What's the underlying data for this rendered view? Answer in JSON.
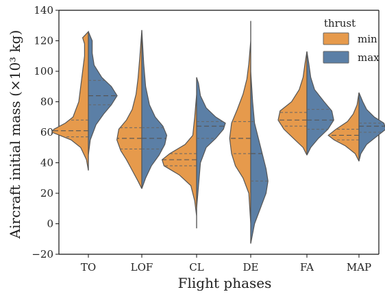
{
  "chart_data": {
    "type": "violin",
    "xlabel": "Flight phases",
    "ylabel": "Aircraft initial mass (×10³ kg)",
    "categories": [
      "TO",
      "LOF",
      "CL",
      "DE",
      "FA",
      "MAP"
    ],
    "ylim": [
      -20,
      140
    ],
    "yticks": [
      -20,
      0,
      20,
      40,
      60,
      80,
      100,
      120,
      140
    ],
    "legend": {
      "title": "thrust",
      "placement": "top-right",
      "entries": [
        {
          "name": "min",
          "color": "#e69a4c"
        },
        {
          "name": "max",
          "color": "#5b7fa6"
        }
      ]
    },
    "series": [
      {
        "name": "min",
        "color": "#e69a4c",
        "violins": [
          {
            "category": "TO",
            "min": 35,
            "q1": 57,
            "median": 61,
            "q3": 68,
            "max": 126,
            "profile": [
              [
                35,
                0.0
              ],
              [
                42,
                0.01
              ],
              [
                50,
                0.04
              ],
              [
                55,
                0.09
              ],
              [
                58,
                0.15
              ],
              [
                60,
                0.19
              ],
              [
                62,
                0.18
              ],
              [
                66,
                0.12
              ],
              [
                70,
                0.08
              ],
              [
                80,
                0.05
              ],
              [
                90,
                0.04
              ],
              [
                100,
                0.03
              ],
              [
                110,
                0.02
              ],
              [
                118,
                0.02
              ],
              [
                122,
                0.03
              ],
              [
                126,
                0.0
              ]
            ]
          },
          {
            "category": "LOF",
            "min": 23,
            "q1": 49,
            "median": 56,
            "q3": 63,
            "max": 127,
            "profile": [
              [
                23,
                0.0
              ],
              [
                28,
                0.02
              ],
              [
                35,
                0.05
              ],
              [
                42,
                0.08
              ],
              [
                48,
                0.11
              ],
              [
                55,
                0.13
              ],
              [
                62,
                0.12
              ],
              [
                68,
                0.08
              ],
              [
                75,
                0.05
              ],
              [
                85,
                0.03
              ],
              [
                95,
                0.02
              ],
              [
                110,
                0.01
              ],
              [
                127,
                0.0
              ]
            ]
          },
          {
            "category": "CL",
            "min": -3,
            "q1": 38,
            "median": 42,
            "q3": 46,
            "max": 96,
            "profile": [
              [
                -3,
                0.0
              ],
              [
                5,
                0.0
              ],
              [
                15,
                0.01
              ],
              [
                25,
                0.03
              ],
              [
                32,
                0.09
              ],
              [
                38,
                0.17
              ],
              [
                42,
                0.18
              ],
              [
                46,
                0.14
              ],
              [
                52,
                0.06
              ],
              [
                58,
                0.02
              ],
              [
                70,
                0.01
              ],
              [
                85,
                0.0
              ],
              [
                96,
                0.0
              ]
            ]
          },
          {
            "category": "DE",
            "min": -13,
            "q1": 46,
            "median": 56,
            "q3": 67,
            "max": 133,
            "profile": [
              [
                -13,
                0.0
              ],
              [
                0,
                0.0
              ],
              [
                20,
                0.01
              ],
              [
                30,
                0.04
              ],
              [
                38,
                0.08
              ],
              [
                46,
                0.1
              ],
              [
                56,
                0.11
              ],
              [
                66,
                0.1
              ],
              [
                75,
                0.07
              ],
              [
                85,
                0.04
              ],
              [
                95,
                0.02
              ],
              [
                105,
                0.01
              ],
              [
                120,
                0.0
              ],
              [
                133,
                0.0
              ]
            ]
          },
          {
            "category": "FA",
            "min": 45,
            "q1": 64,
            "median": 68,
            "q3": 73,
            "max": 113,
            "profile": [
              [
                45,
                0.0
              ],
              [
                50,
                0.02
              ],
              [
                56,
                0.07
              ],
              [
                62,
                0.12
              ],
              [
                68,
                0.15
              ],
              [
                74,
                0.14
              ],
              [
                80,
                0.08
              ],
              [
                88,
                0.04
              ],
              [
                96,
                0.02
              ],
              [
                105,
                0.01
              ],
              [
                113,
                0.0
              ]
            ]
          },
          {
            "category": "MAP",
            "min": 41,
            "q1": 55,
            "median": 58,
            "q3": 62,
            "max": 86,
            "profile": [
              [
                41,
                0.0
              ],
              [
                46,
                0.02
              ],
              [
                51,
                0.07
              ],
              [
                55,
                0.13
              ],
              [
                58,
                0.16
              ],
              [
                62,
                0.12
              ],
              [
                67,
                0.06
              ],
              [
                72,
                0.03
              ],
              [
                78,
                0.01
              ],
              [
                86,
                0.0
              ]
            ]
          }
        ]
      },
      {
        "name": "max",
        "color": "#5b7fa6",
        "violins": [
          {
            "category": "TO",
            "min": 35,
            "q1": 78,
            "median": 84,
            "q3": 94,
            "max": 126,
            "profile": [
              [
                35,
                0.0
              ],
              [
                45,
                0.0
              ],
              [
                55,
                0.01
              ],
              [
                65,
                0.04
              ],
              [
                72,
                0.08
              ],
              [
                78,
                0.12
              ],
              [
                84,
                0.15
              ],
              [
                90,
                0.12
              ],
              [
                96,
                0.07
              ],
              [
                104,
                0.03
              ],
              [
                112,
                0.02
              ],
              [
                120,
                0.02
              ],
              [
                126,
                0.0
              ]
            ]
          },
          {
            "category": "LOF",
            "min": 23,
            "q1": 49,
            "median": 56,
            "q3": 63,
            "max": 127,
            "profile": [
              [
                23,
                0.0
              ],
              [
                30,
                0.02
              ],
              [
                38,
                0.05
              ],
              [
                45,
                0.09
              ],
              [
                52,
                0.12
              ],
              [
                58,
                0.13
              ],
              [
                64,
                0.11
              ],
              [
                70,
                0.07
              ],
              [
                78,
                0.04
              ],
              [
                90,
                0.02
              ],
              [
                105,
                0.01
              ],
              [
                127,
                0.0
              ]
            ]
          },
          {
            "category": "CL",
            "min": -3,
            "q1": 56,
            "median": 64,
            "q3": 67,
            "max": 96,
            "profile": [
              [
                -3,
                0.0
              ],
              [
                10,
                0.0
              ],
              [
                25,
                0.01
              ],
              [
                40,
                0.02
              ],
              [
                50,
                0.05
              ],
              [
                56,
                0.1
              ],
              [
                62,
                0.14
              ],
              [
                66,
                0.15
              ],
              [
                70,
                0.1
              ],
              [
                76,
                0.05
              ],
              [
                84,
                0.02
              ],
              [
                92,
                0.01
              ],
              [
                96,
                0.0
              ]
            ]
          },
          {
            "category": "DE",
            "min": -13,
            "q1": 28,
            "median": 46,
            "q3": 67,
            "max": 133,
            "profile": [
              [
                -13,
                0.0
              ],
              [
                0,
                0.02
              ],
              [
                10,
                0.05
              ],
              [
                20,
                0.08
              ],
              [
                28,
                0.09
              ],
              [
                36,
                0.08
              ],
              [
                46,
                0.06
              ],
              [
                56,
                0.04
              ],
              [
                66,
                0.02
              ],
              [
                80,
                0.01
              ],
              [
                100,
                0.0
              ],
              [
                133,
                0.0
              ]
            ]
          },
          {
            "category": "FA",
            "min": 45,
            "q1": 62,
            "median": 68,
            "q3": 75,
            "max": 113,
            "profile": [
              [
                45,
                0.0
              ],
              [
                50,
                0.02
              ],
              [
                56,
                0.06
              ],
              [
                62,
                0.11
              ],
              [
                68,
                0.14
              ],
              [
                74,
                0.13
              ],
              [
                80,
                0.09
              ],
              [
                88,
                0.04
              ],
              [
                96,
                0.02
              ],
              [
                105,
                0.01
              ],
              [
                113,
                0.0
              ]
            ]
          },
          {
            "category": "MAP",
            "min": 41,
            "q1": 60,
            "median": 64,
            "q3": 66,
            "max": 86,
            "profile": [
              [
                41,
                0.0
              ],
              [
                46,
                0.01
              ],
              [
                52,
                0.04
              ],
              [
                58,
                0.1
              ],
              [
                62,
                0.14
              ],
              [
                66,
                0.13
              ],
              [
                70,
                0.08
              ],
              [
                75,
                0.04
              ],
              [
                80,
                0.02
              ],
              [
                86,
                0.0
              ]
            ]
          }
        ]
      }
    ]
  }
}
